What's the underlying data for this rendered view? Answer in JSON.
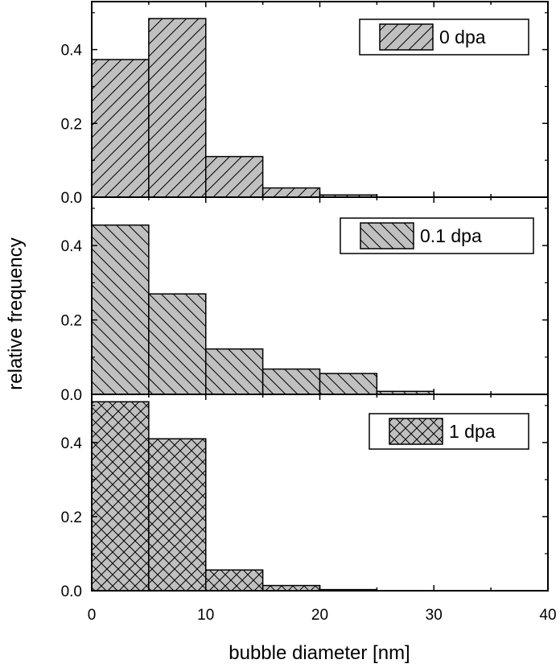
{
  "chart_data": {
    "type": "bar",
    "xlabel": "bubble diameter [nm]",
    "ylabel": "relative frequency",
    "xlim": [
      0,
      40
    ],
    "x_ticks": [
      "0",
      "10",
      "20",
      "30",
      "40"
    ],
    "bin_edges": [
      0,
      5,
      10,
      15,
      20,
      25,
      30
    ],
    "panels": [
      {
        "legend": "0 dpa",
        "pattern": "diagonal-up",
        "ylim": [
          0,
          0.53
        ],
        "y_ticks": [
          "0.0",
          "0.2",
          "0.4"
        ],
        "values": [
          0.373,
          0.484,
          0.11,
          0.025,
          0.006,
          0
        ]
      },
      {
        "legend": "0.1 dpa",
        "pattern": "diagonal-down",
        "ylim": [
          0,
          0.53
        ],
        "y_ticks": [
          "0.0",
          "0.2",
          "0.4"
        ],
        "values": [
          0.455,
          0.27,
          0.122,
          0.068,
          0.056,
          0.008
        ]
      },
      {
        "legend": "1 dpa",
        "pattern": "crosshatch",
        "ylim": [
          0,
          0.53
        ],
        "y_ticks": [
          "0.0",
          "0.2",
          "0.4"
        ],
        "values": [
          0.51,
          0.41,
          0.056,
          0.014,
          0.003,
          0
        ]
      }
    ],
    "colors": {
      "bar_fill": "#c0c0c0",
      "stroke": "#000000"
    }
  }
}
